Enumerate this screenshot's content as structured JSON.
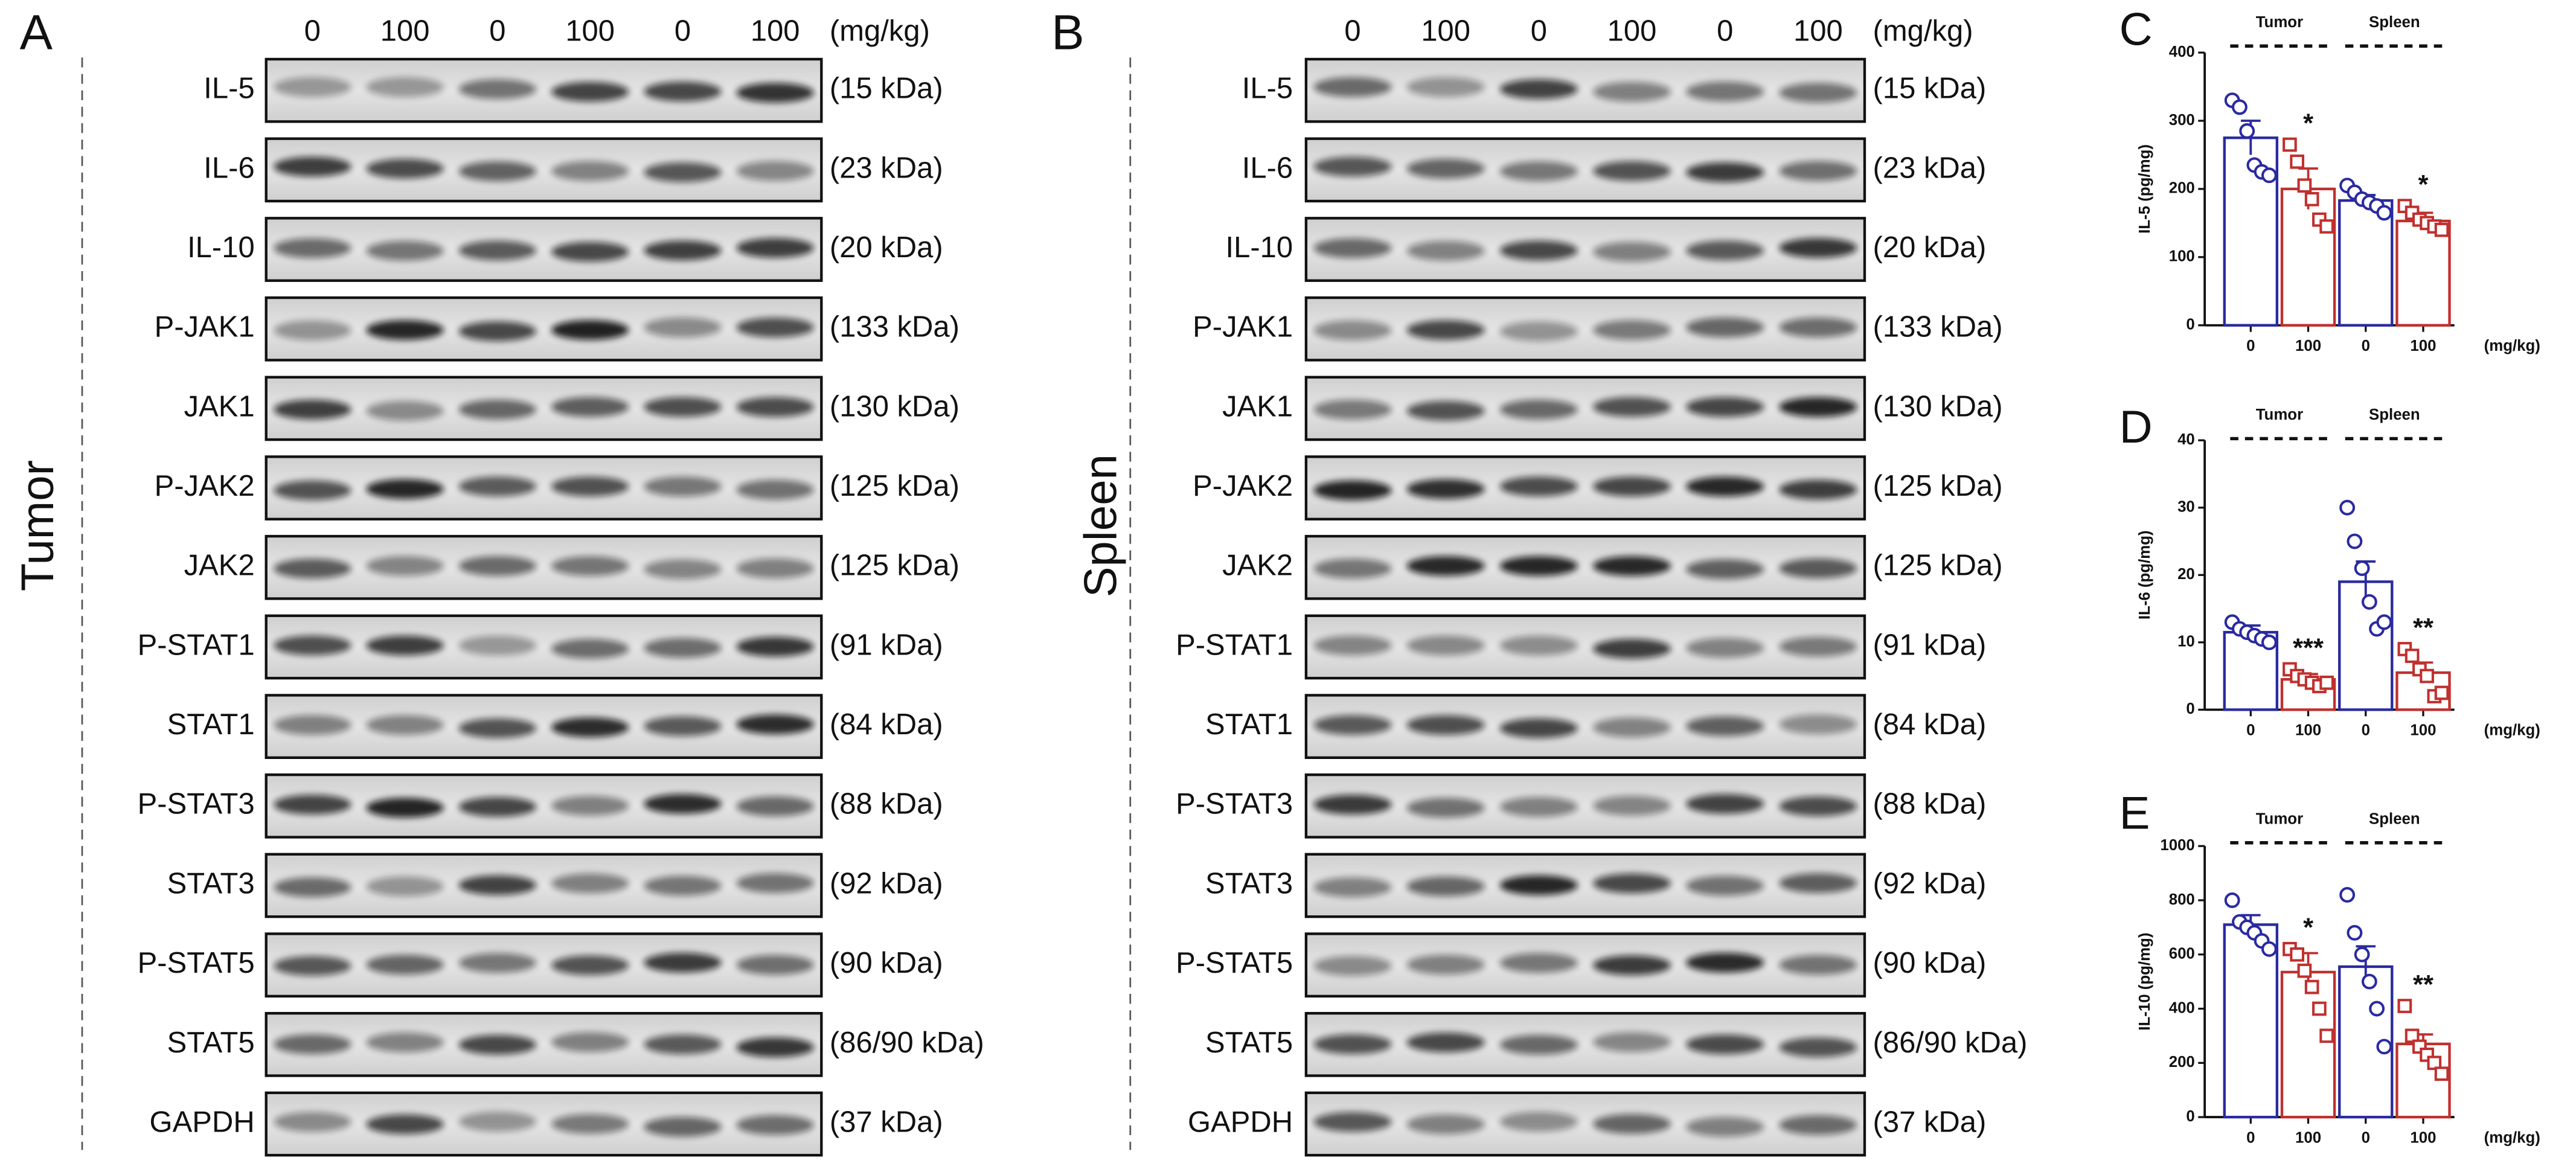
{
  "panels": [
    {
      "label": "A",
      "sample": "Tumor",
      "doses": [
        "0",
        "100",
        "0",
        "100",
        "0",
        "100"
      ],
      "dose_unit": "(mg/kg)",
      "rows": [
        {
          "protein": "IL-5",
          "size": "(15 kDa)"
        },
        {
          "protein": "IL-6",
          "size": "(23 kDa)"
        },
        {
          "protein": "IL-10",
          "size": "(20 kDa)"
        },
        {
          "protein": "P-JAK1",
          "size": "(133 kDa)"
        },
        {
          "protein": "JAK1",
          "size": "(130 kDa)"
        },
        {
          "protein": "P-JAK2",
          "size": "(125 kDa)"
        },
        {
          "protein": "JAK2",
          "size": "(125 kDa)"
        },
        {
          "protein": "P-STAT1",
          "size": "(91 kDa)"
        },
        {
          "protein": "STAT1",
          "size": "(84 kDa)"
        },
        {
          "protein": "P-STAT3",
          "size": "(88 kDa)"
        },
        {
          "protein": "STAT3",
          "size": "(92 kDa)"
        },
        {
          "protein": "P-STAT5",
          "size": "(90 kDa)"
        },
        {
          "protein": "STAT5",
          "size": "(86/90 kDa)"
        },
        {
          "protein": "GAPDH",
          "size": "(37 kDa)"
        }
      ]
    },
    {
      "label": "B",
      "sample": "Spleen",
      "doses": [
        "0",
        "100",
        "0",
        "100",
        "0",
        "100"
      ],
      "dose_unit": "(mg/kg)",
      "rows": [
        {
          "protein": "IL-5",
          "size": "(15 kDa)"
        },
        {
          "protein": "IL-6",
          "size": "(23 kDa)"
        },
        {
          "protein": "IL-10",
          "size": "(20 kDa)"
        },
        {
          "protein": "P-JAK1",
          "size": "(133 kDa)"
        },
        {
          "protein": "JAK1",
          "size": "(130 kDa)"
        },
        {
          "protein": "P-JAK2",
          "size": "(125 kDa)"
        },
        {
          "protein": "JAK2",
          "size": "(125 kDa)"
        },
        {
          "protein": "P-STAT1",
          "size": "(91 kDa)"
        },
        {
          "protein": "STAT1",
          "size": "(84 kDa)"
        },
        {
          "protein": "P-STAT3",
          "size": "(88 kDa)"
        },
        {
          "protein": "STAT3",
          "size": "(92 kDa)"
        },
        {
          "protein": "P-STAT5",
          "size": "(90 kDa)"
        },
        {
          "protein": "STAT5",
          "size": "(86/90 kDa)"
        },
        {
          "protein": "GAPDH",
          "size": "(37 kDa)"
        }
      ]
    }
  ],
  "chart_data": [
    {
      "type": "bar",
      "panel_label": "C",
      "ylabel": "IL-5 (pg/mg)",
      "xlabel": "(mg/kg)",
      "categories": [
        "0",
        "100",
        "0",
        "100"
      ],
      "groups": [
        "Tumor",
        "Spleen"
      ],
      "colors": [
        "#2a2aa0",
        "#c0302e",
        "#2a2aa0",
        "#c0302e"
      ],
      "values": [
        275,
        200,
        183,
        153
      ],
      "errors": [
        25,
        30,
        8,
        12
      ],
      "points": [
        [
          330,
          320,
          285,
          235,
          225,
          220
        ],
        [
          265,
          240,
          205,
          185,
          155,
          145
        ],
        [
          205,
          195,
          185,
          180,
          175,
          165
        ],
        [
          175,
          165,
          155,
          150,
          145,
          140
        ]
      ],
      "significance": [
        null,
        "*",
        null,
        "*"
      ],
      "ylim": [
        0,
        400
      ],
      "yticks": [
        0,
        100,
        200,
        300,
        400
      ]
    },
    {
      "type": "bar",
      "panel_label": "D",
      "ylabel": "IL-6 (pg/mg)",
      "xlabel": "(mg/kg)",
      "categories": [
        "0",
        "100",
        "0",
        "100"
      ],
      "groups": [
        "Tumor",
        "Spleen"
      ],
      "colors": [
        "#2a2aa0",
        "#c0302e",
        "#2a2aa0",
        "#c0302e"
      ],
      "values": [
        11.5,
        4.5,
        19,
        5.5
      ],
      "errors": [
        1,
        0.8,
        3,
        1.5
      ],
      "points": [
        [
          13,
          12,
          11.5,
          11,
          10.5,
          10
        ],
        [
          6,
          5,
          4.5,
          4,
          3.5,
          4
        ],
        [
          30,
          25,
          21,
          16,
          12,
          13
        ],
        [
          9,
          8,
          6,
          5,
          2,
          2.5
        ]
      ],
      "significance": [
        null,
        "***",
        null,
        "**"
      ],
      "ylim": [
        0,
        40
      ],
      "yticks": [
        0,
        10,
        20,
        30,
        40
      ]
    },
    {
      "type": "bar",
      "panel_label": "E",
      "ylabel": "IL-10 (pg/mg)",
      "xlabel": "(mg/kg)",
      "categories": [
        "0",
        "100",
        "0",
        "100"
      ],
      "groups": [
        "Tumor",
        "Spleen"
      ],
      "colors": [
        "#2a2aa0",
        "#c0302e",
        "#2a2aa0",
        "#c0302e"
      ],
      "values": [
        710,
        535,
        555,
        270
      ],
      "errors": [
        35,
        70,
        75,
        35
      ],
      "points": [
        [
          800,
          720,
          700,
          680,
          650,
          620
        ],
        [
          620,
          600,
          540,
          480,
          400,
          300
        ],
        [
          820,
          680,
          600,
          500,
          400,
          260
        ],
        [
          410,
          300,
          260,
          230,
          200,
          160
        ]
      ],
      "significance": [
        null,
        "*",
        null,
        "**"
      ],
      "ylim": [
        0,
        1000
      ],
      "yticks": [
        0,
        200,
        400,
        600,
        800,
        1000
      ]
    }
  ]
}
